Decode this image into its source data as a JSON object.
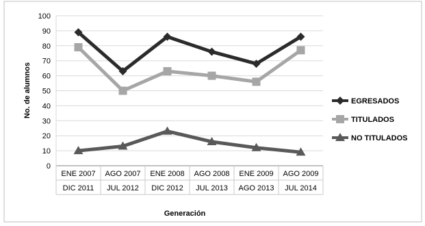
{
  "chart_data": {
    "type": "line",
    "xlabel": "Generación",
    "ylabel": "No. de alumnos",
    "ylim": [
      0,
      100
    ],
    "ytick_step": 10,
    "grid": true,
    "legend_position": "right",
    "categories": [
      {
        "line1": "ENE 2007",
        "line2": "DIC 2011"
      },
      {
        "line1": "AGO 2007",
        "line2": "JUL 2012"
      },
      {
        "line1": "ENE 2008",
        "line2": "DIC 2012"
      },
      {
        "line1": "AGO 2008",
        "line2": "JUL 2013"
      },
      {
        "line1": "ENE 2009",
        "line2": "AGO 2013"
      },
      {
        "line1": "AGO 2009",
        "line2": "JUL 2014"
      }
    ],
    "series": [
      {
        "name": "EGRESADOS",
        "values": [
          89,
          63,
          86,
          76,
          68,
          86
        ],
        "color": "#2b2b2b",
        "marker": "diamond"
      },
      {
        "name": "TITULADOS",
        "values": [
          79,
          50,
          63,
          60,
          56,
          77
        ],
        "color": "#a6a6a6",
        "marker": "square"
      },
      {
        "name": "NO TITULADOS",
        "values": [
          10,
          13,
          23,
          16,
          12,
          9
        ],
        "color": "#595959",
        "marker": "triangle"
      }
    ]
  }
}
